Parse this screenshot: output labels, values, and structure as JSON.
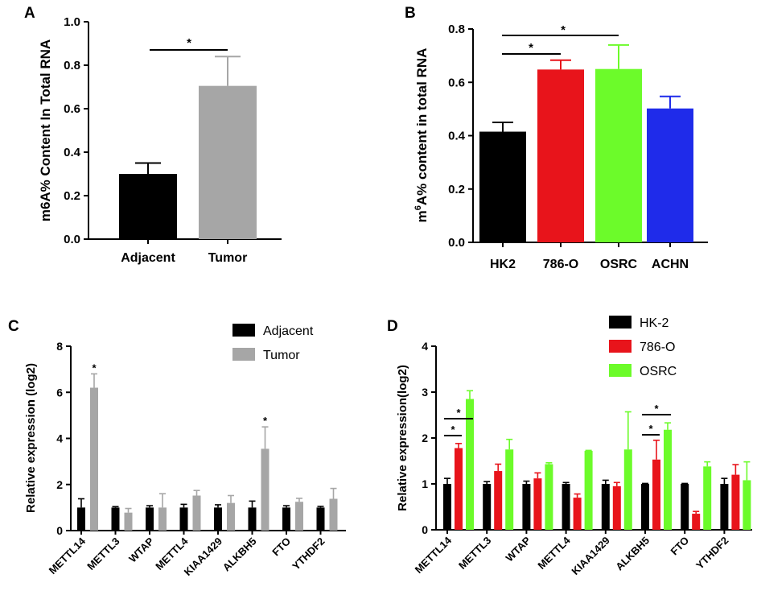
{
  "chart_data": [
    {
      "panel": "A",
      "type": "bar",
      "categories": [
        "Adjacent",
        "Tumor"
      ],
      "values": [
        0.3,
        0.705
      ],
      "errors": [
        0.05,
        0.135
      ],
      "colors": [
        "#000000",
        "#A6A6A6"
      ],
      "ylabel": "m6A% Content In Total RNA",
      "ylim": [
        0,
        1.0
      ],
      "yticks": [
        "0.0",
        "0.2",
        "0.4",
        "0.6",
        "0.8",
        "1.0"
      ],
      "significance": [
        {
          "from": 0,
          "to": 1,
          "label": "*"
        }
      ]
    },
    {
      "panel": "B",
      "type": "bar",
      "categories": [
        "HK2",
        "786-O",
        "OSRC",
        "ACHN"
      ],
      "values": [
        0.415,
        0.648,
        0.65,
        0.502
      ],
      "errors": [
        0.035,
        0.035,
        0.09,
        0.045
      ],
      "colors": [
        "#000000",
        "#E8141B",
        "#6CFB2A",
        "#1F2BEA"
      ],
      "ylabel_pre": "m",
      "ylabel_sup": "6",
      "ylabel_post": "A% content in total RNA",
      "ylim": [
        0,
        0.8
      ],
      "yticks": [
        "0.0",
        "0.2",
        "0.4",
        "0.6",
        "0.8"
      ],
      "significance": [
        {
          "from": 0,
          "to": 1,
          "label": "*"
        },
        {
          "from": 0,
          "to": 2,
          "label": "*"
        }
      ]
    },
    {
      "panel": "C",
      "type": "bar",
      "categories": [
        "METTL14",
        "METTL3",
        "WTAP",
        "METTL4",
        "KIAA1429",
        "ALKBH5",
        "FTO",
        "YTHDF2"
      ],
      "series": [
        {
          "name": "Adjacent",
          "color": "#000000",
          "values": [
            1.0,
            1.0,
            1.0,
            1.0,
            1.0,
            1.0,
            1.0,
            1.0
          ],
          "errors": [
            0.38,
            0.04,
            0.08,
            0.14,
            0.12,
            0.28,
            0.08,
            0.05
          ]
        },
        {
          "name": "Tumor",
          "color": "#A6A6A6",
          "values": [
            6.2,
            0.78,
            1.0,
            1.52,
            1.2,
            3.55,
            1.25,
            1.38
          ],
          "errors": [
            0.6,
            0.18,
            0.6,
            0.22,
            0.32,
            0.95,
            0.15,
            0.45
          ]
        }
      ],
      "ylabel": "Relative expression (log2)",
      "ylim": [
        0,
        8
      ],
      "yticks": [
        "0",
        "2",
        "4",
        "6",
        "8"
      ],
      "significance": [
        {
          "category": 0,
          "label": "*"
        },
        {
          "category": 5,
          "label": "*"
        }
      ]
    },
    {
      "panel": "D",
      "type": "bar",
      "categories": [
        "METTL14",
        "METTL3",
        "WTAP",
        "METTL4",
        "KIAA1429",
        "ALKBH5",
        "FTO",
        "YTHDF2"
      ],
      "series": [
        {
          "name": "HK-2",
          "color": "#000000",
          "values": [
            1.0,
            1.0,
            1.0,
            1.0,
            1.0,
            1.0,
            1.0,
            1.0
          ],
          "errors": [
            0.12,
            0.05,
            0.06,
            0.03,
            0.08,
            0.01,
            0.01,
            0.12
          ]
        },
        {
          "name": "786-O",
          "color": "#E8141B",
          "values": [
            1.78,
            1.28,
            1.12,
            0.7,
            0.95,
            1.53,
            0.35,
            1.2
          ],
          "errors": [
            0.1,
            0.15,
            0.12,
            0.08,
            0.08,
            0.42,
            0.05,
            0.22
          ]
        },
        {
          "name": "OSRC",
          "color": "#6CFB2A",
          "values": [
            2.85,
            1.75,
            1.43,
            1.72,
            1.75,
            2.18,
            1.38,
            1.08
          ],
          "errors": [
            0.18,
            0.22,
            0.03,
            0.01,
            0.82,
            0.15,
            0.1,
            0.4
          ]
        }
      ],
      "ylabel": "Relative expression(log2)",
      "ylim": [
        0,
        4
      ],
      "yticks": [
        "0",
        "1",
        "2",
        "3",
        "4"
      ],
      "significance": [
        {
          "category": 0,
          "from": 0,
          "to": 1,
          "label": "*"
        },
        {
          "category": 0,
          "from": 0,
          "to": 2,
          "label": "*"
        },
        {
          "category": 5,
          "from": 0,
          "to": 1,
          "label": "*"
        },
        {
          "category": 5,
          "from": 0,
          "to": 2,
          "label": "*"
        }
      ]
    }
  ]
}
